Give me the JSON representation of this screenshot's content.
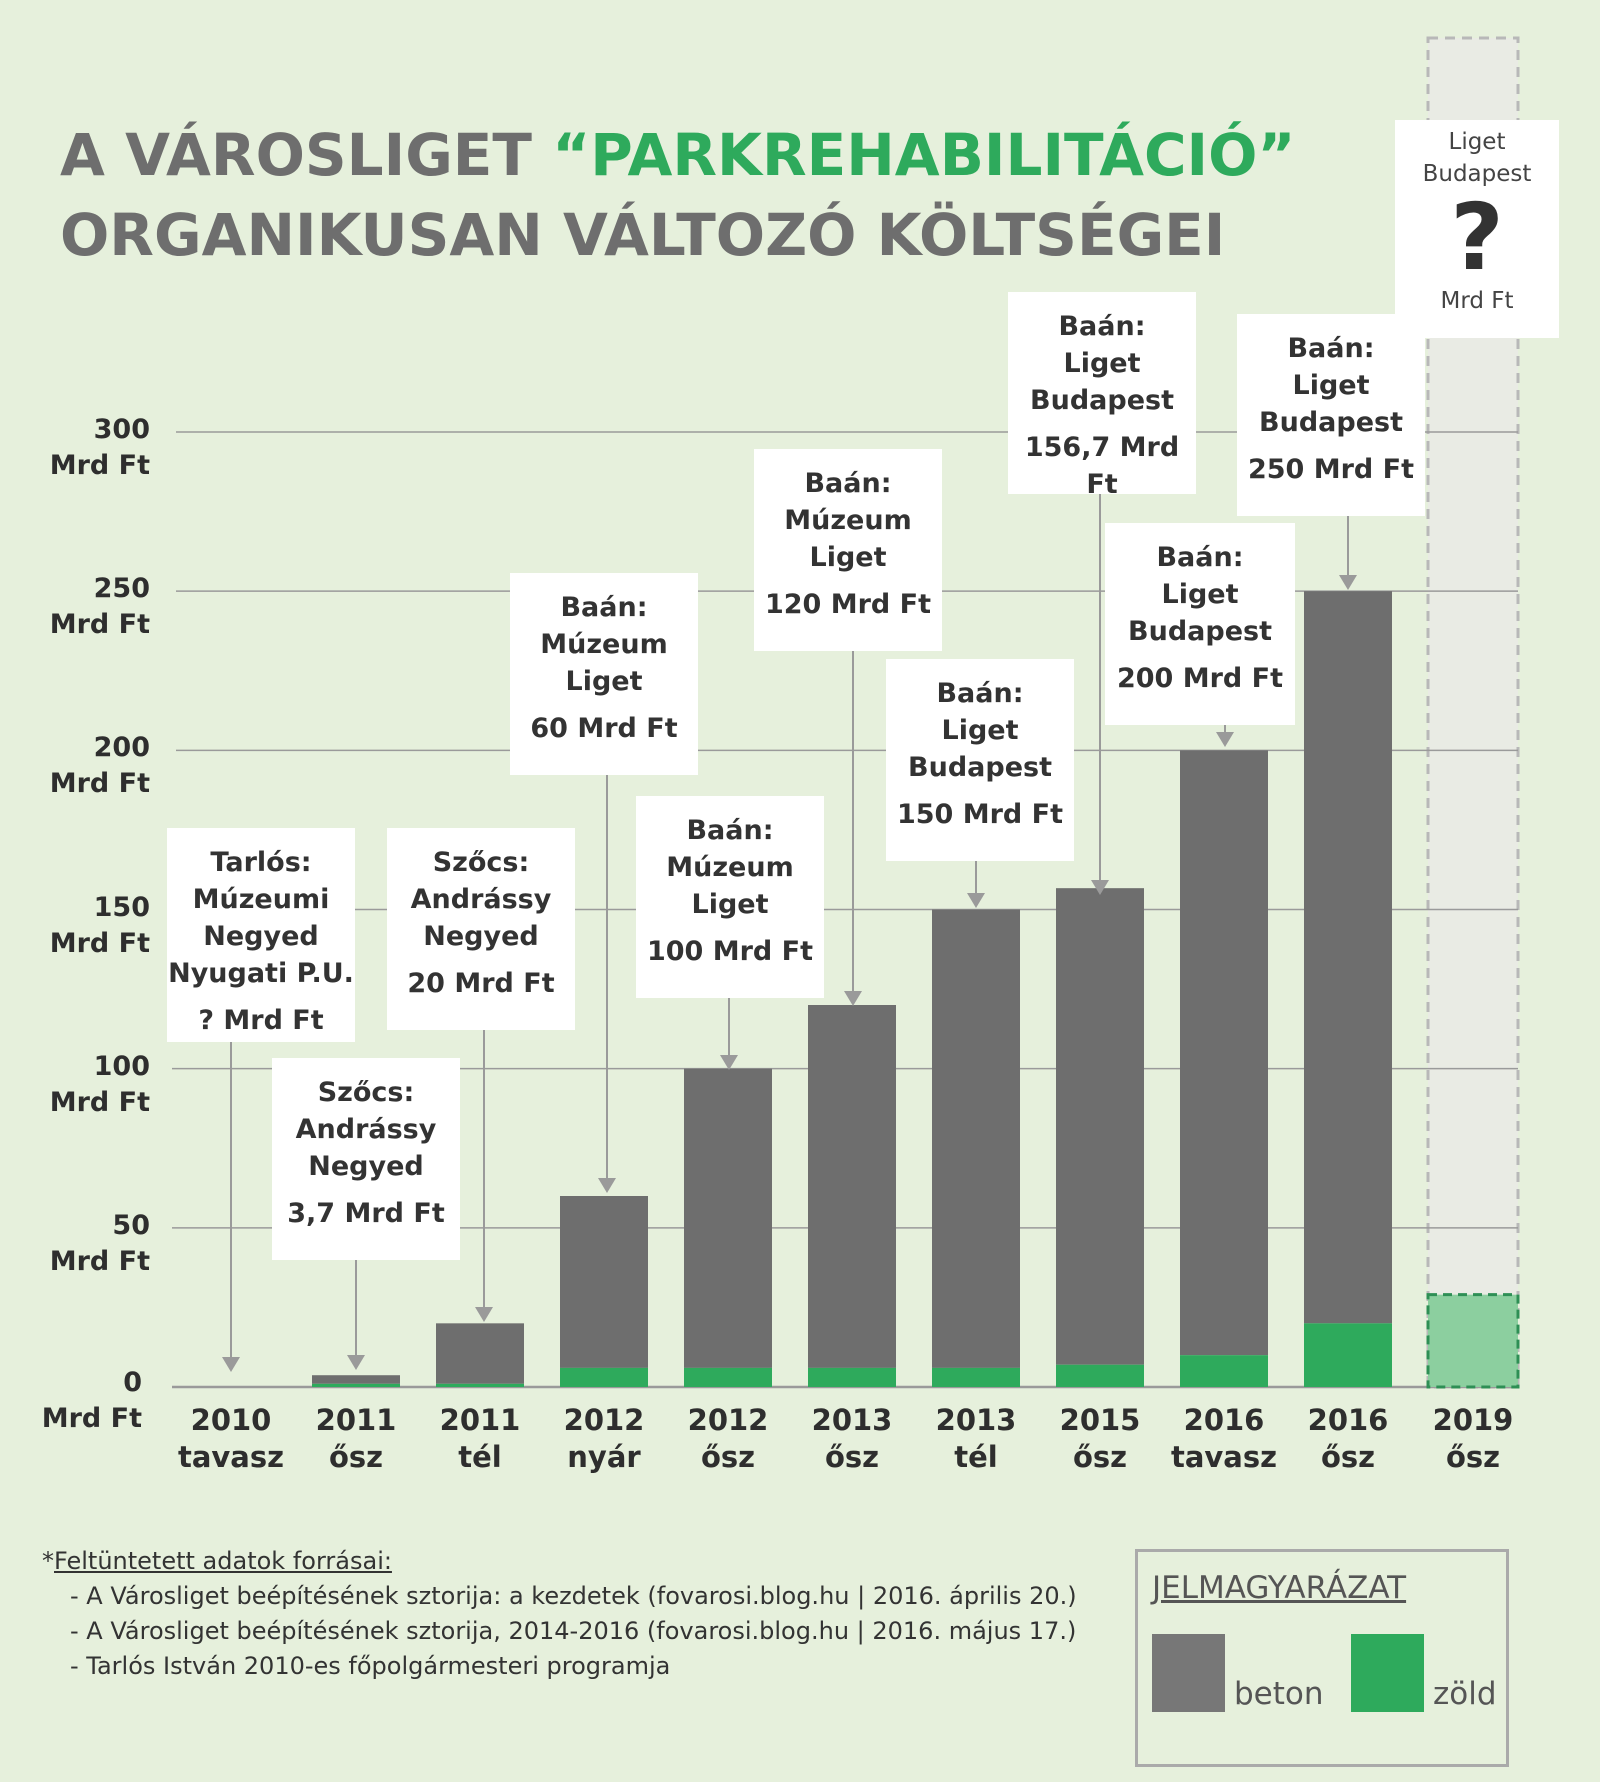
{
  "title": {
    "line1_pre": "A VÁROSLIGET ",
    "line1_highlight": "“PARKREHABILITÁCIÓ”",
    "line2": "ORGANIKUSAN VÁLTOZÓ KÖLTSÉGEI"
  },
  "colors": {
    "background": "#e6f0dc",
    "beton": "#6e6e6e",
    "zold": "#2eaa5c",
    "title_highlight": "#2eaa5c",
    "unknown_fill": "#8ccf9f",
    "unknown_column": "#e9ebe4"
  },
  "chart_data": {
    "type": "bar",
    "stacked": true,
    "categories": [
      [
        "2010",
        "tavasz"
      ],
      [
        "2011",
        "ősz"
      ],
      [
        "2011",
        "tél"
      ],
      [
        "2012",
        "nyár"
      ],
      [
        "2012",
        "ősz"
      ],
      [
        "2013",
        "ősz"
      ],
      [
        "2013",
        "tél"
      ],
      [
        "2015",
        "ősz"
      ],
      [
        "2016",
        "tavasz"
      ],
      [
        "2016",
        "ősz"
      ],
      [
        "2019",
        "ősz"
      ]
    ],
    "series": [
      {
        "name": "beton",
        "color": "#6e6e6e",
        "values": [
          0,
          2.7,
          19,
          54,
          94,
          114,
          144,
          149.7,
          190,
          230,
          null
        ]
      },
      {
        "name": "zöld",
        "color": "#2eaa5c",
        "values": [
          0,
          1,
          1,
          6,
          6,
          6,
          6,
          7,
          10,
          20,
          29
        ]
      }
    ],
    "unknown_category": 10,
    "y_ticks": [
      0,
      50,
      100,
      150,
      200,
      250,
      300
    ],
    "y_tick_unit": "Mrd Ft",
    "ylim": [
      0,
      300
    ],
    "grid": true,
    "callouts": [
      {
        "names": [
          "Tarlós:",
          "Múzeumi",
          "Negyed",
          "Nyugati P.U."
        ],
        "value": "? Mrd Ft"
      },
      {
        "names": [
          "Szőcs:",
          "Andrássy",
          "Negyed"
        ],
        "value": "3,7 Mrd Ft"
      },
      {
        "names": [
          "Szőcs:",
          "Andrássy",
          "Negyed"
        ],
        "value": "20 Mrd Ft"
      },
      {
        "names": [
          "Baán:",
          "Múzeum",
          "Liget"
        ],
        "value": "60 Mrd Ft"
      },
      {
        "names": [
          "Baán:",
          "Múzeum",
          "Liget"
        ],
        "value": "100 Mrd Ft"
      },
      {
        "names": [
          "Baán:",
          "Múzeum",
          "Liget"
        ],
        "value": "120 Mrd Ft"
      },
      {
        "names": [
          "Baán:",
          "Liget",
          "Budapest"
        ],
        "value": "150 Mrd Ft"
      },
      {
        "names": [
          "Baán:",
          "Liget",
          "Budapest"
        ],
        "value": "156,7 Mrd Ft"
      },
      {
        "names": [
          "Baán:",
          "Liget",
          "Budapest"
        ],
        "value": "200 Mrd Ft"
      },
      {
        "names": [
          "Baán:",
          "Liget",
          "Budapest"
        ],
        "value": "250 Mrd Ft"
      },
      {
        "names": [
          "Liget",
          "Budapest"
        ],
        "mark": "?",
        "value": "Mrd Ft"
      }
    ]
  },
  "sources": {
    "heading_prefix": "*",
    "heading": "Feltüntetett adatok forrásai:",
    "items": [
      "- A Városliget beépítésének sztorija: a kezdetek (fovarosi.blog.hu | 2016. április 20.)",
      "- A Városliget beépítésének sztorija, 2014-2016 (fovarosi.blog.hu | 2016. május 17.)",
      "- Tarlós István 2010-es főpolgármesteri programja"
    ]
  },
  "legend": {
    "title": "JELMAGYARÁZAT",
    "items": [
      {
        "label": "beton",
        "color": "#777777"
      },
      {
        "label": "zöld",
        "color": "#2eaa5c"
      }
    ]
  }
}
